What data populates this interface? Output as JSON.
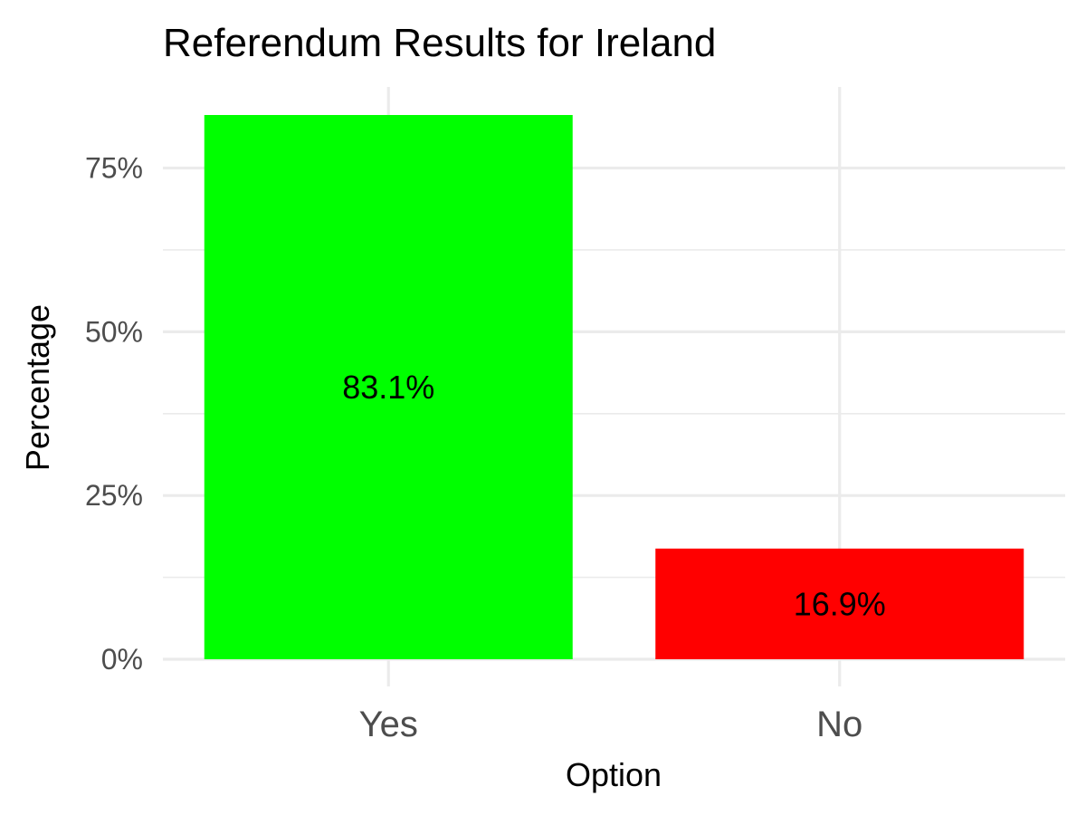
{
  "chart_data": {
    "type": "bar",
    "title": "Referendum Results for Ireland",
    "xlabel": "Option",
    "ylabel": "Percentage",
    "categories": [
      "Yes",
      "No"
    ],
    "values": [
      83.1,
      16.9
    ],
    "data_labels": [
      "83.1%",
      "16.9%"
    ],
    "colors": [
      "#00ff00",
      "#ff0000"
    ],
    "ylim": [
      0,
      83.1
    ],
    "yticks": [
      0,
      25,
      50,
      75
    ],
    "ytick_labels": [
      "0%",
      "25%",
      "50%",
      "75%"
    ],
    "grid": true,
    "legend": "none"
  }
}
